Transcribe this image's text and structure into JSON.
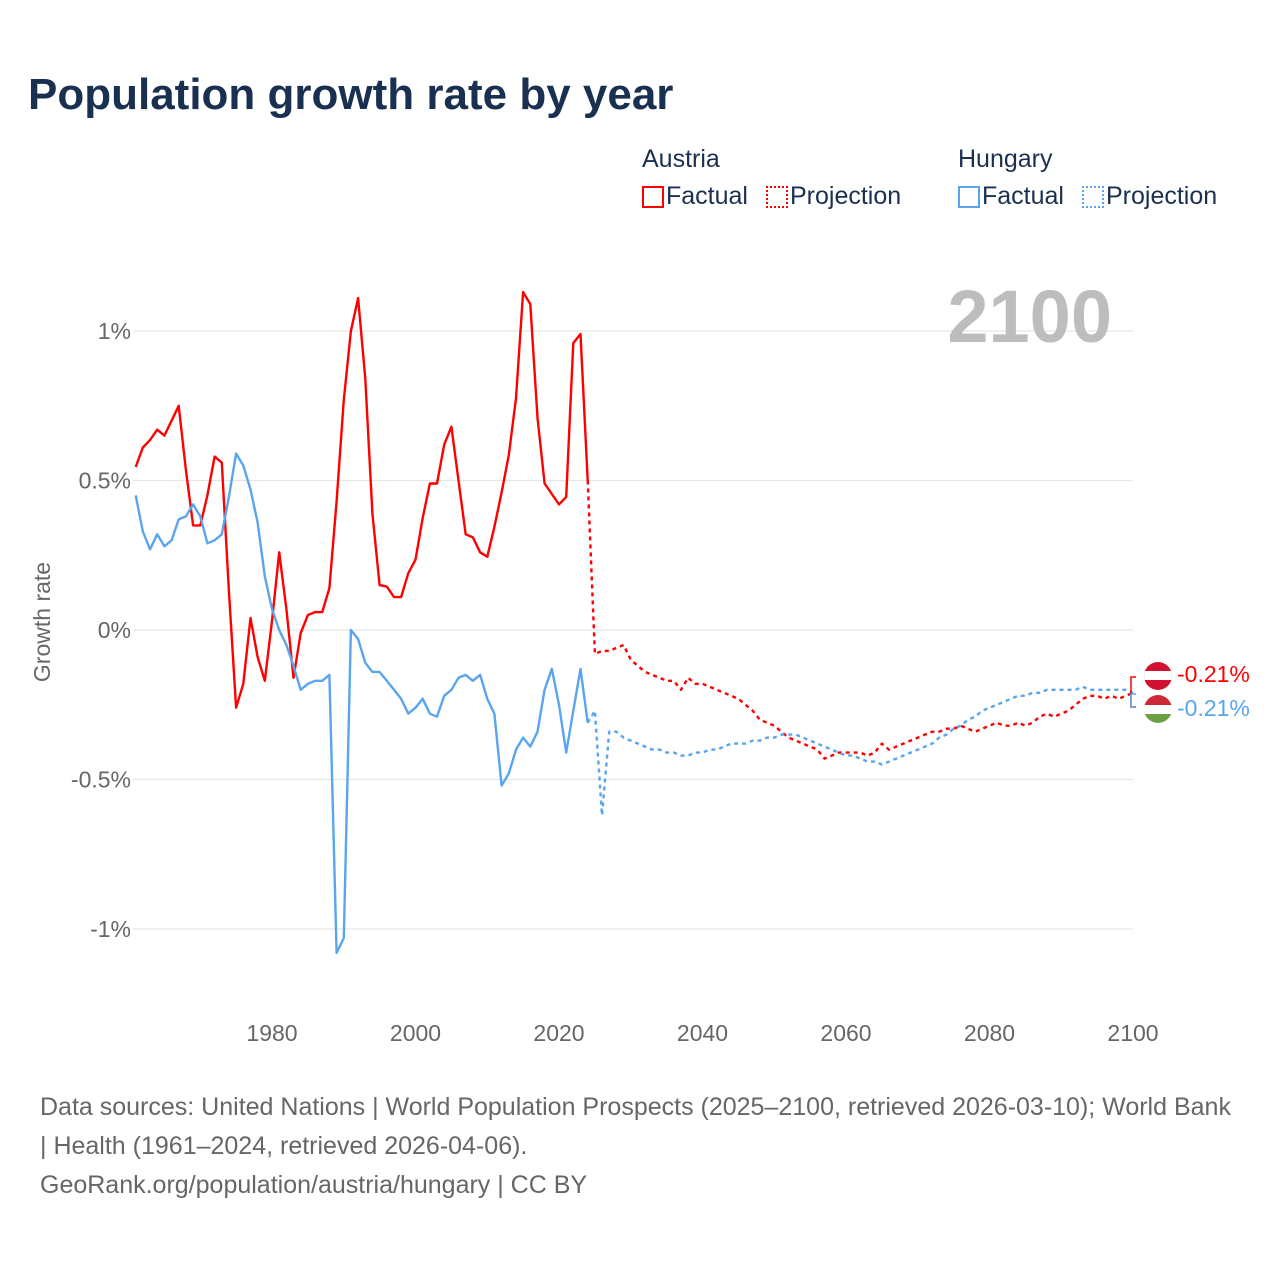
{
  "title": "Population growth rate by year",
  "legend": {
    "groups": [
      {
        "country": "Austria",
        "color": "#ff0000",
        "factual": "Factual",
        "projection": "Projection"
      },
      {
        "country": "Hungary",
        "color": "#5aa5ee",
        "factual": "Factual",
        "projection": "Projection"
      }
    ]
  },
  "year_watermark": "2100",
  "end_labels": {
    "austria": "-0.21%",
    "hungary": "-0.21%"
  },
  "footer": {
    "sources": "Data sources: United Nations | World Population Prospects (2025–2100, retrieved 2026-03-10); World Bank | Health (1961–2024, retrieved 2026-04-06).",
    "credit": "GeoRank.org/population/austria/hungary | CC BY"
  },
  "chart_data": {
    "type": "line",
    "title": "Population growth rate by year",
    "xlabel": "",
    "ylabel": "Growth rate",
    "xlim": [
      1961,
      2100
    ],
    "ylim": [
      -1.15,
      1.15
    ],
    "x_ticks": [
      1980,
      2000,
      2020,
      2040,
      2060,
      2080,
      2100
    ],
    "y_ticks": [
      {
        "v": 1,
        "label": "1%"
      },
      {
        "v": 0.5,
        "label": "0.5%"
      },
      {
        "v": 0,
        "label": "0%"
      },
      {
        "v": -0.5,
        "label": "-0.5%"
      },
      {
        "v": -1,
        "label": "-1%"
      }
    ],
    "grid": true,
    "series": [
      {
        "name": "Austria Factual",
        "color": "#ff0000",
        "dashed": false,
        "start": 1961,
        "values": [
          0.545,
          0.61,
          0.635,
          0.67,
          0.65,
          0.7,
          0.75,
          0.535,
          0.35,
          0.35,
          0.45,
          0.58,
          0.56,
          0.13,
          -0.26,
          -0.18,
          0.04,
          -0.09,
          -0.17,
          0.03,
          0.26,
          0.07,
          -0.16,
          -0.01,
          0.05,
          0.06,
          0.06,
          0.14,
          0.43,
          0.77,
          1.0,
          1.11,
          0.84,
          0.39,
          0.15,
          0.145,
          0.11,
          0.11,
          0.19,
          0.235,
          0.375,
          0.49,
          0.49,
          0.62,
          0.68,
          0.5,
          0.32,
          0.31,
          0.26,
          0.245,
          0.345,
          0.46,
          0.585,
          0.775,
          1.13,
          1.09,
          0.71,
          0.49,
          0.455,
          0.42,
          0.445,
          0.96,
          0.99,
          0.5
        ]
      },
      {
        "name": "Austria Projection",
        "color": "#ff0000",
        "dashed": true,
        "start": 2024,
        "values": [
          0.5,
          -0.08,
          -0.07,
          -0.07,
          -0.06,
          -0.05,
          -0.1,
          -0.12,
          -0.14,
          -0.15,
          -0.16,
          -0.17,
          -0.17,
          -0.2,
          -0.16,
          -0.18,
          -0.18,
          -0.19,
          -0.2,
          -0.21,
          -0.22,
          -0.23,
          -0.25,
          -0.27,
          -0.3,
          -0.31,
          -0.32,
          -0.34,
          -0.36,
          -0.37,
          -0.38,
          -0.39,
          -0.4,
          -0.43,
          -0.42,
          -0.41,
          -0.41,
          -0.41,
          -0.41,
          -0.42,
          -0.41,
          -0.38,
          -0.4,
          -0.39,
          -0.38,
          -0.37,
          -0.36,
          -0.35,
          -0.34,
          -0.34,
          -0.33,
          -0.33,
          -0.32,
          -0.33,
          -0.34,
          -0.33,
          -0.32,
          -0.31,
          -0.32,
          -0.32,
          -0.31,
          -0.32,
          -0.31,
          -0.29,
          -0.28,
          -0.29,
          -0.28,
          -0.27,
          -0.25,
          -0.23,
          -0.22,
          -0.22,
          -0.23,
          -0.22,
          -0.23,
          -0.22,
          -0.21
        ]
      },
      {
        "name": "Hungary Factual",
        "color": "#5aa5ee",
        "dashed": false,
        "start": 1961,
        "values": [
          0.45,
          0.33,
          0.27,
          0.32,
          0.28,
          0.3,
          0.37,
          0.38,
          0.42,
          0.38,
          0.29,
          0.3,
          0.32,
          0.445,
          0.59,
          0.55,
          0.47,
          0.36,
          0.18,
          0.07,
          0.0,
          -0.05,
          -0.12,
          -0.2,
          -0.18,
          -0.17,
          -0.17,
          -0.15,
          -1.08,
          -1.03,
          0.0,
          -0.03,
          -0.11,
          -0.14,
          -0.14,
          -0.17,
          -0.2,
          -0.23,
          -0.28,
          -0.26,
          -0.23,
          -0.28,
          -0.29,
          -0.22,
          -0.2,
          -0.16,
          -0.15,
          -0.17,
          -0.15,
          -0.23,
          -0.28,
          -0.52,
          -0.48,
          -0.4,
          -0.36,
          -0.39,
          -0.34,
          -0.2,
          -0.13,
          -0.25,
          -0.41,
          -0.27,
          -0.13,
          -0.31
        ]
      },
      {
        "name": "Hungary Projection",
        "color": "#5aa5ee",
        "dashed": true,
        "start": 2024,
        "values": [
          -0.31,
          -0.27,
          -0.62,
          -0.34,
          -0.34,
          -0.36,
          -0.37,
          -0.38,
          -0.39,
          -0.4,
          -0.4,
          -0.41,
          -0.41,
          -0.42,
          -0.42,
          -0.41,
          -0.41,
          -0.4,
          -0.4,
          -0.39,
          -0.38,
          -0.38,
          -0.38,
          -0.37,
          -0.37,
          -0.36,
          -0.36,
          -0.35,
          -0.35,
          -0.35,
          -0.36,
          -0.37,
          -0.38,
          -0.39,
          -0.4,
          -0.41,
          -0.42,
          -0.42,
          -0.43,
          -0.44,
          -0.44,
          -0.45,
          -0.44,
          -0.43,
          -0.42,
          -0.41,
          -0.4,
          -0.39,
          -0.38,
          -0.36,
          -0.35,
          -0.33,
          -0.32,
          -0.3,
          -0.29,
          -0.27,
          -0.26,
          -0.25,
          -0.24,
          -0.23,
          -0.22,
          -0.22,
          -0.21,
          -0.21,
          -0.2,
          -0.2,
          -0.2,
          -0.2,
          -0.2,
          -0.19,
          -0.2,
          -0.2,
          -0.2,
          -0.2,
          -0.2,
          -0.2,
          -0.21
        ]
      }
    ]
  }
}
